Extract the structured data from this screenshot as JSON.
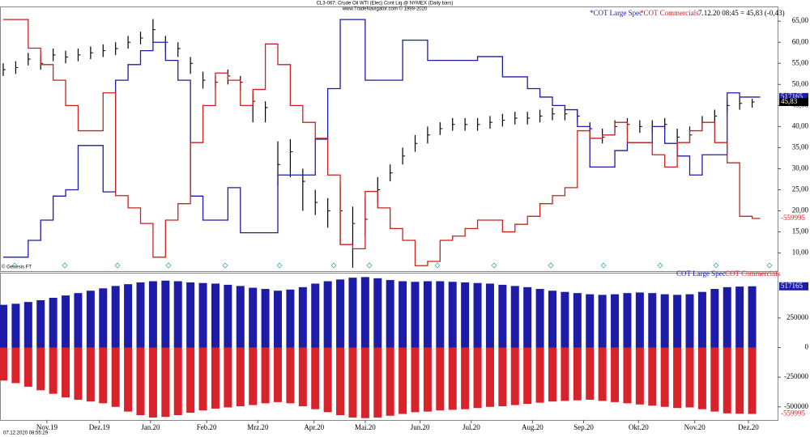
{
  "header": {
    "line1": "CL3-067: Crude Oil WTI (Elec) Cont Liq @ NYMEX  (Daily bars)",
    "line2": "www.TradeNavigator.com © 1999-2020",
    "quote": "7.12.20 08:45 = 45,83 (-0,43)",
    "credit": "© Genesis FT"
  },
  "footer": "07.12.2020 08:55:29",
  "chart_data": [
    {
      "type": "ohlc",
      "x": [
        0,
        1,
        2,
        3,
        4,
        5,
        6,
        7,
        8,
        9,
        10,
        11,
        12,
        13,
        14,
        15,
        16,
        17,
        18,
        19,
        20,
        21,
        22,
        23,
        24,
        25,
        26,
        27,
        28,
        29,
        30,
        31,
        32,
        33,
        34,
        35,
        36,
        37,
        38,
        39,
        40,
        41,
        42,
        43,
        44,
        45,
        46,
        47,
        48,
        49,
        50,
        51,
        52,
        53,
        54,
        55,
        56,
        57,
        58,
        59,
        60
      ],
      "high": [
        55,
        55.5,
        57.5,
        57,
        58.5,
        58,
        58.5,
        59,
        59.5,
        60,
        61.5,
        62.5,
        65.5,
        61.5,
        60,
        56.5,
        53,
        52,
        53.5,
        52,
        48,
        46,
        36.5,
        37,
        30,
        25,
        23,
        26,
        21,
        23,
        28,
        31,
        35,
        38,
        40,
        41,
        42,
        42,
        42,
        42.5,
        43,
        43.5,
        43.5,
        44,
        44.5,
        44.5,
        44,
        41,
        39.5,
        41.5,
        42,
        41.5,
        41.5,
        42,
        39.5,
        40,
        42.5,
        44,
        46.5,
        47,
        46.6
      ],
      "low": [
        52,
        52.5,
        54.5,
        53.5,
        55.5,
        55,
        55.5,
        56,
        56.5,
        57,
        58.5,
        59.5,
        60,
        58,
        56.5,
        52.5,
        49,
        49,
        50,
        48.5,
        41,
        41,
        26,
        28,
        20,
        19,
        16,
        12,
        6.5,
        14,
        22,
        27,
        31,
        34,
        36,
        38,
        39,
        39,
        39,
        39.5,
        40,
        40.5,
        40.5,
        41,
        41.5,
        41.5,
        41,
        37,
        36,
        38.5,
        39,
        38.5,
        38.5,
        39,
        36,
        36.5,
        39.5,
        41,
        43.5,
        44,
        44.5
      ],
      "close": [
        53.5,
        54,
        56,
        55,
        57,
        56.5,
        57,
        57.5,
        58,
        58.5,
        60,
        61,
        63,
        60,
        58.5,
        55,
        51,
        50.5,
        52,
        50.5,
        46,
        44.5,
        31,
        34,
        27,
        22,
        20,
        20,
        17,
        18,
        25,
        29,
        33,
        36,
        38,
        39.5,
        40.5,
        40.5,
        40.5,
        41,
        41.5,
        42,
        42,
        42.5,
        43,
        43,
        42.5,
        39.5,
        37.5,
        40,
        40.5,
        40,
        40,
        40.5,
        37.5,
        38,
        41,
        42.5,
        45,
        45.5,
        45.83
      ],
      "price_box": "45,83",
      "series": [
        {
          "name": "*COT Large Spec",
          "color": "#1c1ca8",
          "values": [
            9,
            9,
            13,
            17.8,
            23.5,
            25,
            35.5,
            35.5,
            24.5,
            51,
            54.7,
            58,
            60,
            55.7,
            51,
            23.5,
            17.8,
            17.8,
            25.5,
            14.8,
            14.8,
            14.8,
            28.5,
            28.5,
            28.5,
            37,
            49,
            65.4,
            65.4,
            51,
            51,
            51,
            60.5,
            60.5,
            55.7,
            55.7,
            55.7,
            55.7,
            56.6,
            56.6,
            51.8,
            51.8,
            49,
            47,
            45,
            44,
            40,
            30.4,
            30.4,
            34.3,
            36.2,
            36.2,
            40,
            36,
            33,
            28.5,
            33.3,
            33.3,
            48,
            47,
            47
          ]
        },
        {
          "name": "*COT Commercials",
          "color": "#c8231c",
          "values": [
            65.4,
            65.4,
            58.6,
            54.7,
            51,
            45,
            39,
            39,
            48,
            23.6,
            20.7,
            17,
            9,
            17.8,
            21.7,
            36.2,
            45,
            52.7,
            51,
            45,
            48.8,
            59.6,
            54.7,
            45,
            41,
            37.2,
            28.5,
            12,
            11,
            24.6,
            20.7,
            15.8,
            13,
            7,
            8,
            13,
            14,
            15.8,
            17.8,
            17.8,
            15,
            16.8,
            18.7,
            21.7,
            23.6,
            25.5,
            39,
            37.2,
            38,
            41,
            36.2,
            36.2,
            33.3,
            30.4,
            36.2,
            39,
            41,
            36.2,
            31.4,
            18.7,
            18.2
          ]
        }
      ],
      "ylim": [
        5.7,
        68.3
      ],
      "xlim": [
        0,
        62.3
      ],
      "yticks": [
        {
          "value": 10,
          "label": "10,00"
        },
        {
          "value": 15,
          "label": "15,00"
        },
        {
          "value": 20,
          "label": "20,00"
        },
        {
          "value": 25,
          "label": "25,00"
        },
        {
          "value": 30,
          "label": "30,00"
        },
        {
          "value": 35,
          "label": "35,00"
        },
        {
          "value": 40,
          "label": "40,00"
        },
        {
          "value": 45,
          "label": "45,00"
        },
        {
          "value": 50,
          "label": "50,00"
        },
        {
          "value": 55,
          "label": "55,00"
        },
        {
          "value": 60,
          "label": "60,00"
        },
        {
          "value": 65,
          "label": "65,00"
        }
      ]
    },
    {
      "type": "bar",
      "x": [
        0,
        1,
        2,
        3,
        4,
        5,
        6,
        7,
        8,
        9,
        10,
        11,
        12,
        13,
        14,
        15,
        16,
        17,
        18,
        19,
        20,
        21,
        22,
        23,
        24,
        25,
        26,
        27,
        28,
        29,
        30,
        31,
        32,
        33,
        34,
        35,
        36,
        37,
        38,
        39,
        40,
        41,
        42,
        43,
        44,
        45,
        46,
        47,
        48,
        49,
        50,
        51,
        52,
        53,
        54,
        55,
        56,
        57,
        58,
        59,
        60
      ],
      "series": [
        {
          "name": "COT Large Spec",
          "color": "#1c1ca8",
          "values": [
            361000,
            370000,
            385000,
            400000,
            420000,
            440000,
            460000,
            480000,
            500000,
            520000,
            535000,
            550000,
            560000,
            565000,
            560000,
            550000,
            545000,
            540000,
            530000,
            520000,
            505000,
            495000,
            480000,
            490000,
            510000,
            540000,
            560000,
            575000,
            590000,
            595000,
            585000,
            570000,
            560000,
            555000,
            560000,
            560000,
            555000,
            550000,
            545000,
            540000,
            530000,
            520000,
            510000,
            495000,
            480000,
            470000,
            460000,
            450000,
            445000,
            450000,
            460000,
            465000,
            460000,
            450000,
            445000,
            450000,
            470000,
            495000,
            510000,
            515000,
            517165
          ]
        },
        {
          "name": "COT Commercials",
          "color": "#d8232a",
          "values": [
            -278000,
            -300000,
            -330000,
            -360000,
            -390000,
            -420000,
            -440000,
            -455000,
            -470000,
            -500000,
            -540000,
            -570000,
            -590000,
            -585000,
            -570000,
            -550000,
            -530000,
            -515000,
            -505000,
            -495000,
            -485000,
            -470000,
            -460000,
            -470000,
            -495000,
            -520000,
            -545000,
            -570000,
            -590000,
            -595000,
            -590000,
            -575000,
            -560000,
            -545000,
            -540000,
            -530000,
            -525000,
            -520000,
            -510000,
            -500000,
            -495000,
            -485000,
            -475000,
            -465000,
            -455000,
            -450000,
            -445000,
            -440000,
            -450000,
            -460000,
            -470000,
            -480000,
            -490000,
            -500000,
            -510000,
            -505000,
            -520000,
            -540000,
            -555000,
            -558000,
            -559995
          ]
        }
      ],
      "ylim": [
        -611000,
        625000
      ],
      "xlim": [
        0,
        62.3
      ],
      "yticks": [
        -500000,
        -250000,
        0,
        250000
      ],
      "xticks": [
        {
          "value": 3.5,
          "label": "Nov.19"
        },
        {
          "value": 7.7,
          "label": "Dez.19"
        },
        {
          "value": 11.8,
          "label": "Jan.20"
        },
        {
          "value": 16.3,
          "label": "Feb.20"
        },
        {
          "value": 20.4,
          "label": "Mrz.20"
        },
        {
          "value": 24.9,
          "label": "Apr.20"
        },
        {
          "value": 29,
          "label": "Mai.20"
        },
        {
          "value": 33.4,
          "label": "Jun.20"
        },
        {
          "value": 37.5,
          "label": "Jul.20"
        },
        {
          "value": 42.4,
          "label": "Aug.20"
        },
        {
          "value": 46.5,
          "label": "Sep.20"
        },
        {
          "value": 50.9,
          "label": "Okt.20"
        },
        {
          "value": 55.4,
          "label": "Nov.20"
        },
        {
          "value": 59.7,
          "label": "Dez.20"
        }
      ]
    }
  ]
}
